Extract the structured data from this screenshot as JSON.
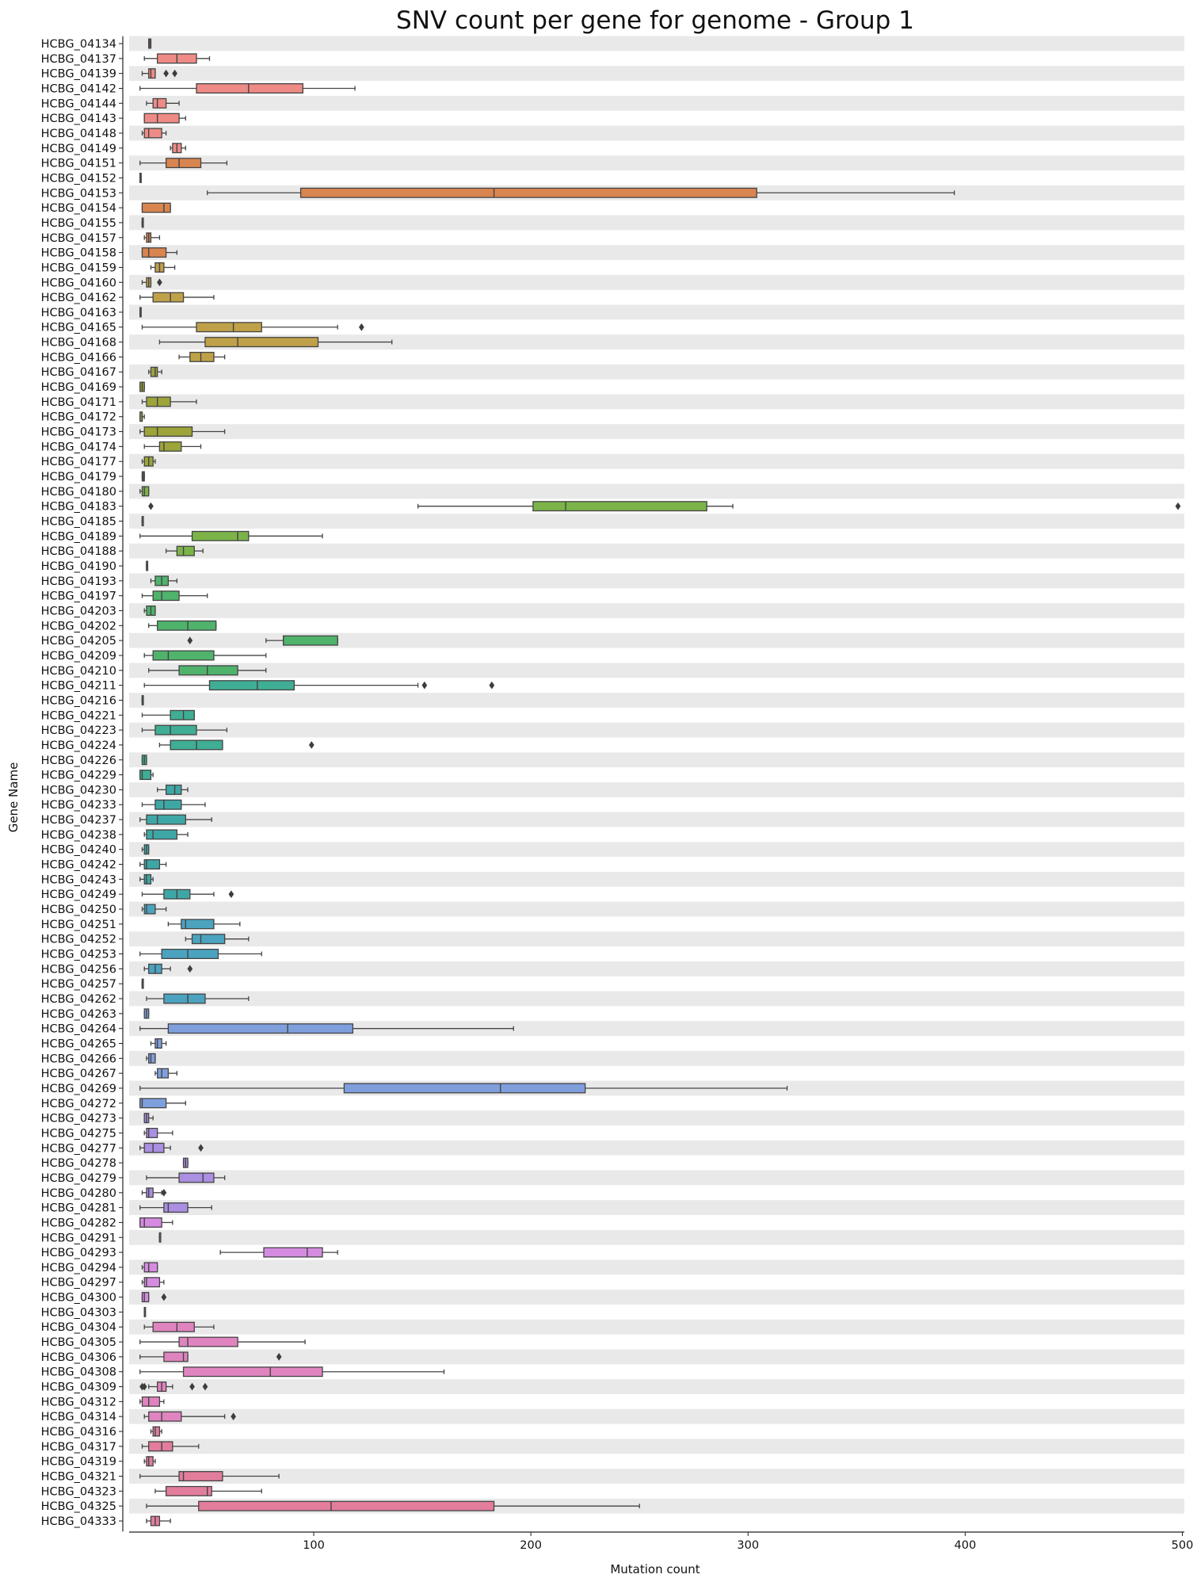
{
  "chart_data": {
    "type": "boxplot",
    "orientation": "horizontal",
    "title": "SNV count per gene for genome - Group 1",
    "xlabel": "Mutation count",
    "ylabel": "Gene Name",
    "xlim": [
      15,
      501
    ],
    "xticks": [
      100,
      200,
      300,
      400,
      500
    ],
    "row_banding": "alternating light-grey stripes",
    "stats_order": [
      "whisker_low",
      "q1",
      "median",
      "q3",
      "whisker_high"
    ],
    "boxes": [
      {
        "gene": "HCBG_04134",
        "stats": [
          24,
          24,
          24.5,
          25,
          25
        ],
        "outliers": []
      },
      {
        "gene": "HCBG_04137",
        "stats": [
          22,
          28,
          37,
          46,
          52
        ],
        "outliers": []
      },
      {
        "gene": "HCBG_04139",
        "stats": [
          21,
          24,
          25,
          27,
          27
        ],
        "outliers": [
          32,
          36
        ]
      },
      {
        "gene": "HCBG_04142",
        "stats": [
          20,
          46,
          70,
          95,
          119
        ],
        "outliers": []
      },
      {
        "gene": "HCBG_04144",
        "stats": [
          23,
          26,
          28,
          32,
          38
        ],
        "outliers": []
      },
      {
        "gene": "HCBG_04143",
        "stats": [
          22,
          22,
          28,
          38,
          41
        ],
        "outliers": []
      },
      {
        "gene": "HCBG_04148",
        "stats": [
          21,
          22,
          24,
          30,
          32
        ],
        "outliers": []
      },
      {
        "gene": "HCBG_04149",
        "stats": [
          34,
          35,
          37,
          39,
          41
        ],
        "outliers": []
      },
      {
        "gene": "HCBG_04151",
        "stats": [
          20,
          32,
          38,
          48,
          60
        ],
        "outliers": []
      },
      {
        "gene": "HCBG_04152",
        "stats": [
          20,
          20,
          20,
          20,
          20
        ],
        "outliers": []
      },
      {
        "gene": "HCBG_04153",
        "stats": [
          51,
          94,
          183,
          304,
          395
        ],
        "outliers": []
      },
      {
        "gene": "HCBG_04154",
        "stats": [
          21,
          21,
          31,
          34,
          34
        ],
        "outliers": []
      },
      {
        "gene": "HCBG_04155",
        "stats": [
          21,
          21,
          21,
          21,
          21
        ],
        "outliers": []
      },
      {
        "gene": "HCBG_04157",
        "stats": [
          22,
          23,
          24,
          25,
          29
        ],
        "outliers": []
      },
      {
        "gene": "HCBG_04158",
        "stats": [
          21,
          21,
          24,
          32,
          37
        ],
        "outliers": []
      },
      {
        "gene": "HCBG_04159",
        "stats": [
          25,
          27,
          29,
          31,
          36
        ],
        "outliers": []
      },
      {
        "gene": "HCBG_04160",
        "stats": [
          21,
          23,
          24,
          25,
          25
        ],
        "outliers": [
          29
        ]
      },
      {
        "gene": "HCBG_04162",
        "stats": [
          20,
          26,
          34,
          40,
          54
        ],
        "outliers": []
      },
      {
        "gene": "HCBG_04163",
        "stats": [
          20,
          20,
          20,
          20,
          20
        ],
        "outliers": []
      },
      {
        "gene": "HCBG_04165",
        "stats": [
          21,
          46,
          63,
          76,
          111
        ],
        "outliers": [
          122
        ]
      },
      {
        "gene": "HCBG_04168",
        "stats": [
          29,
          50,
          65,
          102,
          136
        ],
        "outliers": []
      },
      {
        "gene": "HCBG_04166",
        "stats": [
          38,
          43,
          48,
          54,
          59
        ],
        "outliers": []
      },
      {
        "gene": "HCBG_04167",
        "stats": [
          24,
          25,
          27,
          28,
          30
        ],
        "outliers": []
      },
      {
        "gene": "HCBG_04169",
        "stats": [
          20,
          20,
          21,
          22,
          22
        ],
        "outliers": []
      },
      {
        "gene": "HCBG_04171",
        "stats": [
          21,
          23,
          28,
          34,
          46
        ],
        "outliers": []
      },
      {
        "gene": "HCBG_04172",
        "stats": [
          20,
          20,
          21,
          21,
          22
        ],
        "outliers": []
      },
      {
        "gene": "HCBG_04173",
        "stats": [
          20,
          22,
          28,
          44,
          59
        ],
        "outliers": []
      },
      {
        "gene": "HCBG_04174",
        "stats": [
          22,
          29,
          31,
          39,
          48
        ],
        "outliers": []
      },
      {
        "gene": "HCBG_04177",
        "stats": [
          21,
          22,
          24,
          26,
          27
        ],
        "outliers": []
      },
      {
        "gene": "HCBG_04179",
        "stats": [
          21,
          21,
          21.5,
          22,
          22
        ],
        "outliers": []
      },
      {
        "gene": "HCBG_04180",
        "stats": [
          20,
          21,
          22,
          24,
          24
        ],
        "outliers": []
      },
      {
        "gene": "HCBG_04183",
        "stats": [
          148,
          201,
          216,
          281,
          293
        ],
        "outliers": [
          25,
          498
        ]
      },
      {
        "gene": "HCBG_04185",
        "stats": [
          21,
          21,
          21,
          21,
          21
        ],
        "outliers": []
      },
      {
        "gene": "HCBG_04189",
        "stats": [
          20,
          44,
          65,
          70,
          104
        ],
        "outliers": []
      },
      {
        "gene": "HCBG_04188",
        "stats": [
          32,
          37,
          40,
          45,
          49
        ],
        "outliers": []
      },
      {
        "gene": "HCBG_04190",
        "stats": [
          23,
          23,
          23,
          23,
          23
        ],
        "outliers": []
      },
      {
        "gene": "HCBG_04193",
        "stats": [
          25,
          27,
          30,
          33,
          37
        ],
        "outliers": []
      },
      {
        "gene": "HCBG_04197",
        "stats": [
          21,
          26,
          30,
          38,
          51
        ],
        "outliers": []
      },
      {
        "gene": "HCBG_04203",
        "stats": [
          22,
          23,
          25,
          27,
          27
        ],
        "outliers": []
      },
      {
        "gene": "HCBG_04202",
        "stats": [
          24,
          28,
          42,
          55,
          55
        ],
        "outliers": []
      },
      {
        "gene": "HCBG_04205",
        "stats": [
          78,
          86,
          86,
          111,
          111
        ],
        "outliers": [
          43
        ]
      },
      {
        "gene": "HCBG_04209",
        "stats": [
          22,
          26,
          33,
          54,
          78
        ],
        "outliers": []
      },
      {
        "gene": "HCBG_04210",
        "stats": [
          24,
          38,
          51,
          65,
          78
        ],
        "outliers": []
      },
      {
        "gene": "HCBG_04211",
        "stats": [
          22,
          52,
          74,
          91,
          148
        ],
        "outliers": [
          151,
          182
        ]
      },
      {
        "gene": "HCBG_04216",
        "stats": [
          21,
          21,
          21,
          21,
          21
        ],
        "outliers": []
      },
      {
        "gene": "HCBG_04221",
        "stats": [
          21,
          34,
          40,
          45,
          45
        ],
        "outliers": []
      },
      {
        "gene": "HCBG_04223",
        "stats": [
          21,
          27,
          34,
          46,
          60
        ],
        "outliers": []
      },
      {
        "gene": "HCBG_04224",
        "stats": [
          29,
          34,
          46,
          58,
          58
        ],
        "outliers": [
          99
        ]
      },
      {
        "gene": "HCBG_04226",
        "stats": [
          21,
          21,
          22,
          23,
          23
        ],
        "outliers": []
      },
      {
        "gene": "HCBG_04229",
        "stats": [
          20,
          20,
          21,
          25,
          26
        ],
        "outliers": []
      },
      {
        "gene": "HCBG_04230",
        "stats": [
          28,
          32,
          36,
          39,
          42
        ],
        "outliers": []
      },
      {
        "gene": "HCBG_04233",
        "stats": [
          21,
          27,
          31,
          39,
          50
        ],
        "outliers": []
      },
      {
        "gene": "HCBG_04237",
        "stats": [
          20,
          23,
          28,
          41,
          53
        ],
        "outliers": []
      },
      {
        "gene": "HCBG_04238",
        "stats": [
          22,
          23,
          26,
          37,
          42
        ],
        "outliers": []
      },
      {
        "gene": "HCBG_04240",
        "stats": [
          21,
          22,
          23,
          24,
          24
        ],
        "outliers": []
      },
      {
        "gene": "HCBG_04242",
        "stats": [
          20,
          22,
          23,
          29,
          32
        ],
        "outliers": []
      },
      {
        "gene": "HCBG_04243",
        "stats": [
          20,
          22,
          23,
          25,
          26
        ],
        "outliers": []
      },
      {
        "gene": "HCBG_04249",
        "stats": [
          21,
          31,
          37,
          43,
          54
        ],
        "outliers": [
          62
        ]
      },
      {
        "gene": "HCBG_04250",
        "stats": [
          21,
          22,
          23,
          27,
          32
        ],
        "outliers": []
      },
      {
        "gene": "HCBG_04251",
        "stats": [
          33,
          39,
          41,
          54,
          66
        ],
        "outliers": []
      },
      {
        "gene": "HCBG_04252",
        "stats": [
          41,
          44,
          48,
          59,
          70
        ],
        "outliers": []
      },
      {
        "gene": "HCBG_04253",
        "stats": [
          20,
          30,
          42,
          56,
          76
        ],
        "outliers": []
      },
      {
        "gene": "HCBG_04256",
        "stats": [
          22,
          24,
          27,
          30,
          34
        ],
        "outliers": [
          43
        ]
      },
      {
        "gene": "HCBG_04257",
        "stats": [
          21,
          21,
          21,
          21,
          21
        ],
        "outliers": []
      },
      {
        "gene": "HCBG_04262",
        "stats": [
          23,
          31,
          42,
          50,
          70
        ],
        "outliers": []
      },
      {
        "gene": "HCBG_04263",
        "stats": [
          22,
          22,
          23,
          24,
          24
        ],
        "outliers": []
      },
      {
        "gene": "HCBG_04264",
        "stats": [
          20,
          33,
          88,
          118,
          192
        ],
        "outliers": []
      },
      {
        "gene": "HCBG_04265",
        "stats": [
          25,
          27,
          28,
          30,
          32
        ],
        "outliers": []
      },
      {
        "gene": "HCBG_04266",
        "stats": [
          23,
          24,
          25,
          27,
          27
        ],
        "outliers": []
      },
      {
        "gene": "HCBG_04267",
        "stats": [
          27,
          28,
          30,
          33,
          37
        ],
        "outliers": []
      },
      {
        "gene": "HCBG_04269",
        "stats": [
          20,
          114,
          186,
          225,
          318
        ],
        "outliers": []
      },
      {
        "gene": "HCBG_04272",
        "stats": [
          20,
          20,
          21,
          32,
          41
        ],
        "outliers": []
      },
      {
        "gene": "HCBG_04273",
        "stats": [
          22,
          22,
          23,
          24,
          26
        ],
        "outliers": []
      },
      {
        "gene": "HCBG_04275",
        "stats": [
          22,
          23,
          24,
          28,
          35
        ],
        "outliers": []
      },
      {
        "gene": "HCBG_04277",
        "stats": [
          20,
          22,
          26,
          31,
          34
        ],
        "outliers": [
          48
        ]
      },
      {
        "gene": "HCBG_04278",
        "stats": [
          40,
          40,
          41,
          42,
          42
        ],
        "outliers": []
      },
      {
        "gene": "HCBG_04279",
        "stats": [
          23,
          38,
          49,
          54,
          59
        ],
        "outliers": []
      },
      {
        "gene": "HCBG_04280",
        "stats": [
          21,
          23,
          24,
          26,
          30
        ],
        "outliers": [
          31
        ]
      },
      {
        "gene": "HCBG_04281",
        "stats": [
          20,
          31,
          33,
          42,
          53
        ],
        "outliers": []
      },
      {
        "gene": "HCBG_04282",
        "stats": [
          20,
          20,
          22,
          30,
          35
        ],
        "outliers": []
      },
      {
        "gene": "HCBG_04291",
        "stats": [
          29,
          29,
          29,
          29,
          29
        ],
        "outliers": []
      },
      {
        "gene": "HCBG_04293",
        "stats": [
          57,
          77,
          97,
          104,
          111
        ],
        "outliers": []
      },
      {
        "gene": "HCBG_04294",
        "stats": [
          21,
          22,
          24,
          28,
          28
        ],
        "outliers": []
      },
      {
        "gene": "HCBG_04297",
        "stats": [
          21,
          22,
          23,
          29,
          31
        ],
        "outliers": []
      },
      {
        "gene": "HCBG_04300",
        "stats": [
          21,
          21,
          22,
          24,
          24
        ],
        "outliers": [
          31
        ]
      },
      {
        "gene": "HCBG_04303",
        "stats": [
          22,
          22,
          22,
          22,
          22
        ],
        "outliers": []
      },
      {
        "gene": "HCBG_04304",
        "stats": [
          22,
          26,
          37,
          45,
          54
        ],
        "outliers": []
      },
      {
        "gene": "HCBG_04305",
        "stats": [
          20,
          38,
          42,
          65,
          96
        ],
        "outliers": []
      },
      {
        "gene": "HCBG_04306",
        "stats": [
          20,
          31,
          40,
          42,
          42
        ],
        "outliers": [
          84
        ]
      },
      {
        "gene": "HCBG_04308",
        "stats": [
          20,
          40,
          80,
          104,
          160
        ],
        "outliers": []
      },
      {
        "gene": "HCBG_04309",
        "stats": [
          24,
          28,
          30,
          32,
          35
        ],
        "outliers": [
          21,
          22,
          44,
          50
        ]
      },
      {
        "gene": "HCBG_04312",
        "stats": [
          20,
          21,
          24,
          29,
          31
        ],
        "outliers": []
      },
      {
        "gene": "HCBG_04314",
        "stats": [
          22,
          24,
          30,
          39,
          59
        ],
        "outliers": [
          63
        ]
      },
      {
        "gene": "HCBG_04316",
        "stats": [
          25,
          26,
          27,
          29,
          30
        ],
        "outliers": []
      },
      {
        "gene": "HCBG_04317",
        "stats": [
          21,
          24,
          30,
          35,
          47
        ],
        "outliers": []
      },
      {
        "gene": "HCBG_04319",
        "stats": [
          22,
          23,
          24,
          26,
          27
        ],
        "outliers": []
      },
      {
        "gene": "HCBG_04321",
        "stats": [
          20,
          38,
          40,
          58,
          84
        ],
        "outliers": []
      },
      {
        "gene": "HCBG_04323",
        "stats": [
          27,
          32,
          51,
          53,
          76
        ],
        "outliers": []
      },
      {
        "gene": "HCBG_04325",
        "stats": [
          23,
          47,
          108,
          183,
          250
        ],
        "outliers": []
      },
      {
        "gene": "HCBG_04333",
        "stats": [
          23,
          25,
          27,
          29,
          34
        ],
        "outliers": []
      }
    ],
    "colors": [
      "#ee8b86",
      "#d9854f",
      "#bfa149",
      "#9ca43a",
      "#7bb349",
      "#4fb36c",
      "#3fae94",
      "#3ea7a6",
      "#4ba3bf",
      "#7f9fdc",
      "#aa8fe2",
      "#d58ce0",
      "#e084c0",
      "#e27d9c"
    ],
    "band_color": "#e9e9e9",
    "edge_color": "#444444"
  }
}
